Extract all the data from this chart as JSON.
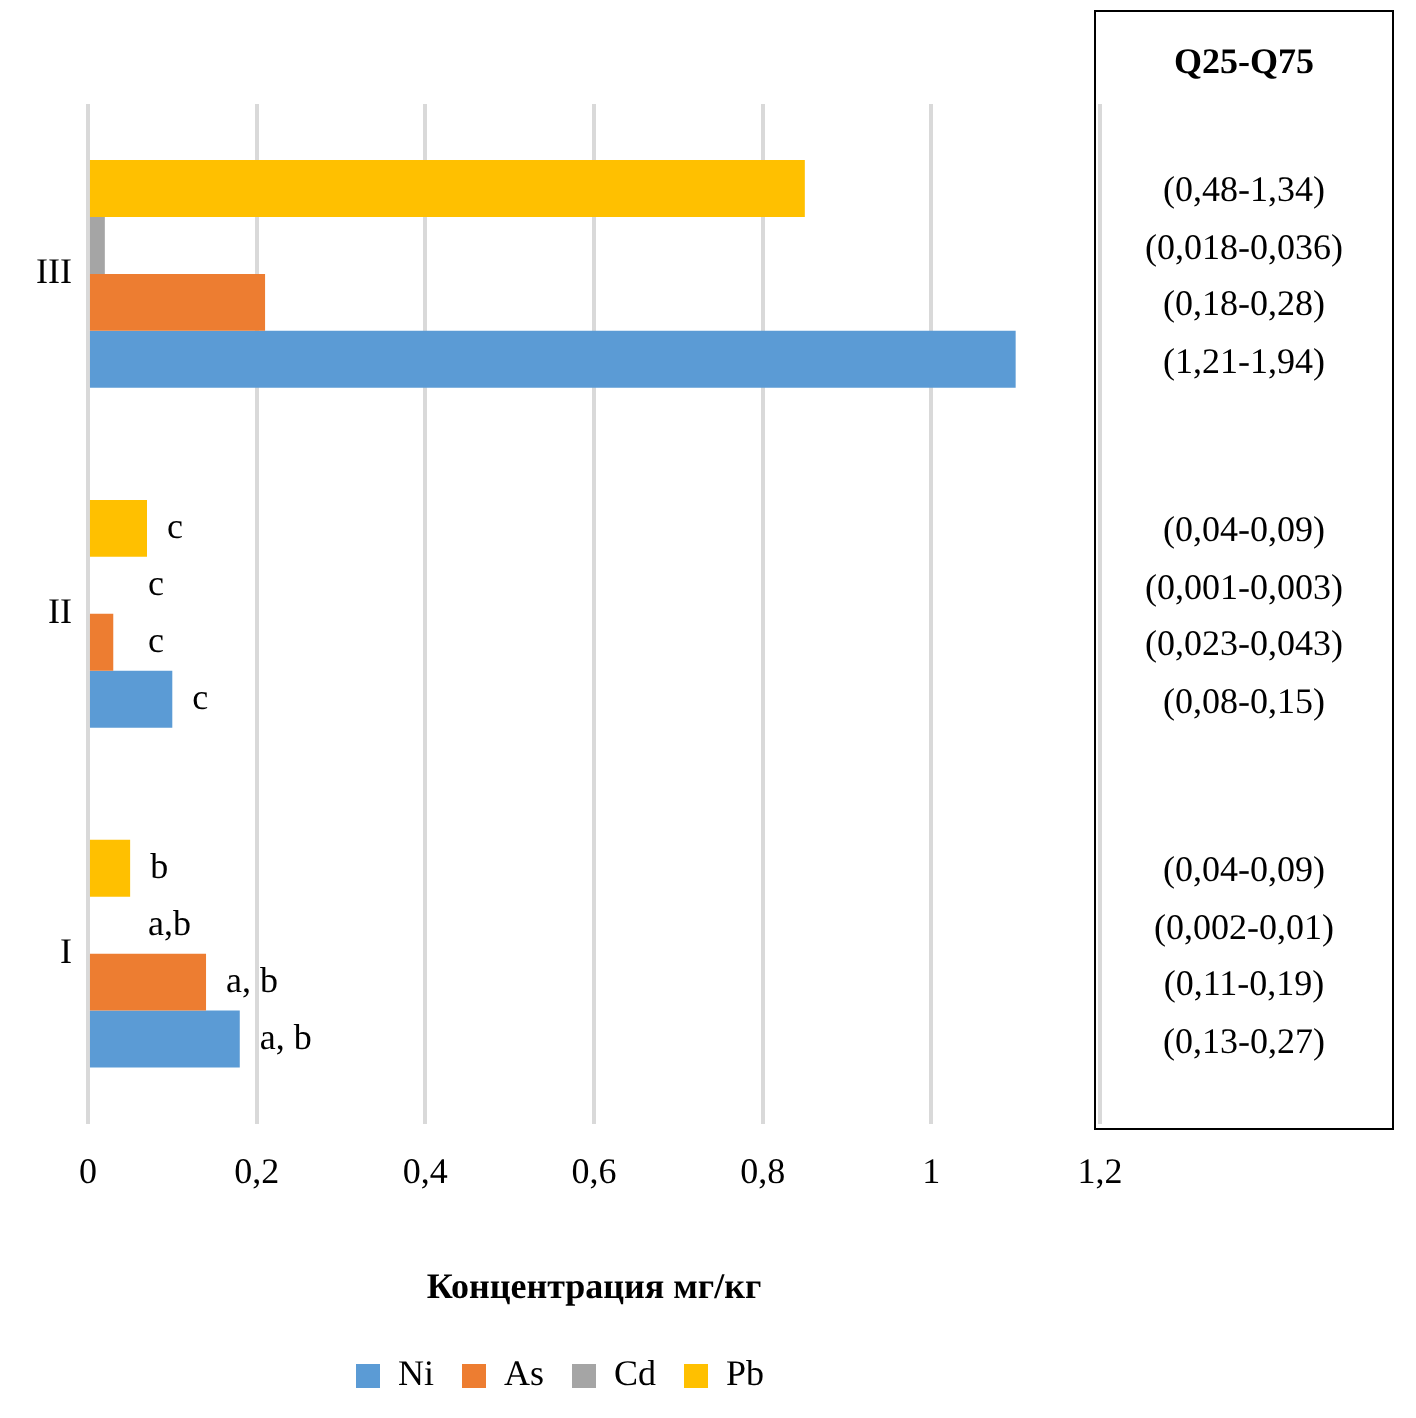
{
  "chart_data": {
    "type": "bar",
    "orientation": "horizontal",
    "xlabel": "Концентрация мг/кг",
    "categories": [
      "III",
      "II",
      "I"
    ],
    "series": [
      {
        "name": "Ni",
        "color": "#5b9bd5",
        "values": [
          1.1,
          0.1,
          0.18
        ],
        "value_labels": [
          null,
          "c",
          "a, b"
        ]
      },
      {
        "name": "As",
        "color": "#ed7d31",
        "values": [
          0.21,
          0.03,
          0.14
        ],
        "value_labels": [
          null,
          "c",
          "a, b"
        ]
      },
      {
        "name": "Cd",
        "color": "#a5a5a5",
        "values": [
          0.02,
          0,
          0
        ],
        "value_labels": [
          null,
          "c",
          "a,b"
        ]
      },
      {
        "name": "Pb",
        "color": "#ffc000",
        "values": [
          0.85,
          0.07,
          0.05
        ],
        "value_labels": [
          null,
          "c",
          "b"
        ]
      }
    ],
    "xlim": [
      0,
      1.2
    ],
    "xticks": [
      0,
      {
        "value": 0.2,
        "label": "0,2"
      },
      {
        "value": 0.4,
        "label": "0,4"
      },
      {
        "value": 0.6,
        "label": "0,6"
      },
      {
        "value": 0.8,
        "label": "0,8"
      },
      1,
      {
        "value": 1.2,
        "label": "1,2"
      }
    ],
    "grid": "x",
    "legend": "bottom",
    "annotations": [
      "Q25-Q75",
      "(0,48-1,34)",
      "(0,018-0,036)",
      "(0,18-0,28)",
      "(1,21-1,94)",
      "(0,04-0,09)",
      "(0,001-0,003)",
      "(0,023-0,043)",
      "(0,08-0,15)",
      "(0,04-0,09)",
      "(0,002-0,01)",
      "(0,11-0,19)",
      "(0,13-0,27)"
    ]
  }
}
